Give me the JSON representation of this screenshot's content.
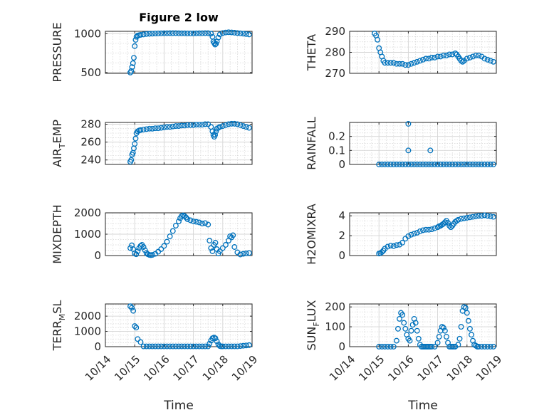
{
  "figure_title": "Figure 2 low",
  "x_label": "Time",
  "x_tick_labels": [
    "10/14",
    "10/15",
    "10/16",
    "10/17",
    "10/18",
    "10/19"
  ],
  "colors": {
    "marker": "#0072BD",
    "axis": "#262626",
    "grid": "#d6d6d6",
    "background": "#ffffff"
  },
  "chart_data": [
    {
      "type": "scatter",
      "title": "Figure 2 low",
      "ylabel": "PRESSURE",
      "ylabel_sub": null,
      "ylim": [
        490,
        1030
      ],
      "yticks": [
        500,
        1000
      ],
      "ytick_labels": [
        "500",
        "1000"
      ],
      "x": [
        0.85,
        0.88,
        0.91,
        0.94,
        0.97,
        1.0,
        1.03,
        1.06,
        1.1,
        1.15,
        1.2,
        1.3,
        1.4,
        1.5,
        1.6,
        1.7,
        1.8,
        1.9,
        2.0,
        2.1,
        2.2,
        2.3,
        2.4,
        2.5,
        2.6,
        2.7,
        2.8,
        2.9,
        3.0,
        3.1,
        3.2,
        3.3,
        3.4,
        3.5,
        3.6,
        3.65,
        3.68,
        3.71,
        3.74,
        3.77,
        3.8,
        3.85,
        3.9,
        4.0,
        4.1,
        4.2,
        4.3,
        4.4,
        4.5,
        4.6,
        4.7,
        4.8,
        4.9
      ],
      "y": [
        500,
        520,
        570,
        620,
        690,
        840,
        920,
        960,
        975,
        980,
        985,
        990,
        995,
        998,
        1000,
        1002,
        1003,
        1004,
        1005,
        1005,
        1006,
        1006,
        1006,
        1005,
        1004,
        1004,
        1003,
        1003,
        1003,
        1004,
        1005,
        1005,
        1006,
        1006,
        1000,
        960,
        900,
        880,
        860,
        870,
        900,
        950,
        990,
        1008,
        1015,
        1018,
        1016,
        1012,
        1008,
        1004,
        1000,
        995,
        990
      ]
    },
    {
      "type": "scatter",
      "ylabel": "THETA",
      "ylabel_sub": null,
      "ylim": [
        270,
        290
      ],
      "yticks": [
        270,
        280,
        290
      ],
      "ytick_labels": [
        "270",
        "280",
        "290"
      ],
      "x": [
        0.85,
        0.9,
        0.95,
        1.0,
        1.05,
        1.1,
        1.15,
        1.2,
        1.3,
        1.4,
        1.5,
        1.6,
        1.7,
        1.8,
        1.9,
        2.0,
        2.1,
        2.2,
        2.3,
        2.4,
        2.5,
        2.6,
        2.7,
        2.8,
        2.9,
        3.0,
        3.1,
        3.2,
        3.3,
        3.4,
        3.5,
        3.6,
        3.65,
        3.7,
        3.75,
        3.8,
        3.85,
        3.9,
        4.0,
        4.1,
        4.2,
        4.3,
        4.4,
        4.5,
        4.6,
        4.7,
        4.8,
        4.9
      ],
      "y": [
        289,
        288,
        286,
        282,
        280,
        278,
        276,
        275,
        275,
        275,
        275,
        274.5,
        274.5,
        274.5,
        274,
        274,
        274.5,
        275,
        275.5,
        276,
        276.5,
        277,
        277,
        277.5,
        277.5,
        278,
        278,
        278.5,
        278.5,
        279,
        279,
        279.5,
        279,
        278,
        277,
        276,
        275.5,
        276,
        277,
        277.5,
        278,
        278.5,
        278.5,
        278,
        277,
        276.5,
        276,
        275.5
      ]
    },
    {
      "type": "scatter",
      "ylabel": "AIR",
      "ylabel_sub": "T",
      "ylabel_suffix": "EMP",
      "ylim": [
        235,
        282
      ],
      "yticks": [
        240,
        260,
        280
      ],
      "ytick_labels": [
        "240",
        "260",
        "280"
      ],
      "x": [
        0.85,
        0.88,
        0.91,
        0.94,
        0.97,
        1.0,
        1.03,
        1.06,
        1.1,
        1.15,
        1.2,
        1.3,
        1.4,
        1.5,
        1.6,
        1.7,
        1.8,
        1.9,
        2.0,
        2.1,
        2.2,
        2.3,
        2.4,
        2.5,
        2.6,
        2.7,
        2.8,
        2.9,
        3.0,
        3.1,
        3.2,
        3.3,
        3.4,
        3.5,
        3.6,
        3.65,
        3.68,
        3.71,
        3.74,
        3.77,
        3.8,
        3.85,
        3.9,
        4.0,
        4.1,
        4.2,
        4.3,
        4.4,
        4.5,
        4.6,
        4.7,
        4.8,
        4.9
      ],
      "y": [
        238,
        240,
        246,
        248,
        253,
        258,
        264,
        270,
        272,
        273,
        273.5,
        274,
        274.5,
        275,
        275,
        275.5,
        275.5,
        276,
        276.5,
        277,
        277,
        277.5,
        278,
        278,
        278.5,
        278.5,
        279,
        279,
        279,
        279.5,
        279.5,
        279.5,
        280,
        280,
        277,
        272,
        268,
        266,
        268,
        272,
        275,
        276,
        277,
        278,
        279,
        280,
        280.5,
        280.5,
        280,
        279,
        278,
        277,
        276
      ]
    },
    {
      "type": "scatter",
      "ylabel": "RAINFALL",
      "ylabel_sub": null,
      "ylim": [
        0,
        0.3
      ],
      "yticks": [
        0,
        0.1,
        0.2
      ],
      "ytick_labels": [
        "0",
        "0.1",
        "0.2"
      ],
      "x": [
        1.0,
        1.1,
        1.2,
        1.3,
        1.4,
        1.5,
        1.6,
        1.7,
        1.8,
        1.9,
        2.0,
        2.1,
        2.2,
        2.3,
        2.4,
        2.5,
        2.6,
        2.7,
        2.8,
        2.9,
        3.0,
        3.1,
        3.2,
        3.3,
        3.4,
        3.5,
        3.6,
        3.7,
        3.8,
        3.9,
        4.0,
        4.1,
        4.2,
        4.3,
        4.4,
        4.5,
        4.6,
        4.7,
        4.8,
        4.9,
        2.0,
        2.0,
        2.75
      ],
      "y": [
        0,
        0,
        0,
        0,
        0,
        0,
        0,
        0,
        0,
        0,
        0,
        0,
        0,
        0,
        0,
        0,
        0,
        0,
        0,
        0,
        0,
        0,
        0,
        0,
        0,
        0,
        0,
        0,
        0,
        0,
        0,
        0,
        0,
        0,
        0,
        0,
        0,
        0,
        0,
        0,
        0.29,
        0.1,
        0.1
      ]
    },
    {
      "type": "scatter",
      "ylabel": "MIXDEPTH",
      "ylabel_sub": null,
      "ylim": [
        0,
        2000
      ],
      "yticks": [
        0,
        1000,
        2000
      ],
      "ytick_labels": [
        "0",
        "1000",
        "2000"
      ],
      "x": [
        0.85,
        0.9,
        0.95,
        1.0,
        1.05,
        1.1,
        1.15,
        1.2,
        1.25,
        1.3,
        1.35,
        1.4,
        1.45,
        1.5,
        1.55,
        1.6,
        1.7,
        1.8,
        1.9,
        2.0,
        2.1,
        2.2,
        2.3,
        2.4,
        2.5,
        2.55,
        2.6,
        2.65,
        2.7,
        2.75,
        2.8,
        2.9,
        3.0,
        3.1,
        3.2,
        3.3,
        3.4,
        3.5,
        3.55,
        3.6,
        3.65,
        3.7,
        3.75,
        3.8,
        3.85,
        3.9,
        4.0,
        4.1,
        4.2,
        4.25,
        4.3,
        4.35,
        4.4,
        4.5,
        4.6,
        4.7,
        4.8,
        4.9
      ],
      "y": [
        350,
        480,
        300,
        100,
        60,
        200,
        350,
        450,
        500,
        400,
        250,
        120,
        60,
        30,
        20,
        30,
        80,
        180,
        300,
        450,
        650,
        900,
        1150,
        1400,
        1600,
        1750,
        1850,
        1880,
        1850,
        1780,
        1700,
        1650,
        1600,
        1580,
        1550,
        1500,
        1520,
        1450,
        700,
        350,
        200,
        500,
        600,
        300,
        100,
        200,
        350,
        500,
        700,
        900,
        850,
        950,
        400,
        150,
        50,
        80,
        100,
        120
      ]
    },
    {
      "type": "scatter",
      "ylabel": "H2OMIXRA",
      "ylabel_sub": null,
      "ylim": [
        0,
        4.3
      ],
      "yticks": [
        0,
        2,
        4
      ],
      "ytick_labels": [
        "0",
        "2",
        "4"
      ],
      "x": [
        1.0,
        1.05,
        1.1,
        1.15,
        1.2,
        1.3,
        1.4,
        1.5,
        1.6,
        1.7,
        1.8,
        1.9,
        2.0,
        2.1,
        2.2,
        2.3,
        2.4,
        2.5,
        2.6,
        2.7,
        2.8,
        2.9,
        3.0,
        3.05,
        3.1,
        3.15,
        3.2,
        3.25,
        3.3,
        3.35,
        3.4,
        3.45,
        3.5,
        3.55,
        3.6,
        3.65,
        3.7,
        3.8,
        3.9,
        4.0,
        4.1,
        4.2,
        4.3,
        4.4,
        4.5,
        4.6,
        4.7,
        4.8,
        4.9
      ],
      "y": [
        0.2,
        0.25,
        0.35,
        0.5,
        0.7,
        0.9,
        1.0,
        0.95,
        1.05,
        1.1,
        1.3,
        1.7,
        1.95,
        2.1,
        2.2,
        2.3,
        2.45,
        2.55,
        2.6,
        2.6,
        2.65,
        2.75,
        2.85,
        2.95,
        3.0,
        3.1,
        3.2,
        3.35,
        3.5,
        3.3,
        3.0,
        2.85,
        3.0,
        3.2,
        3.4,
        3.5,
        3.6,
        3.7,
        3.75,
        3.8,
        3.85,
        3.9,
        3.95,
        4.0,
        4.0,
        4.05,
        4.0,
        3.95,
        3.9
      ]
    },
    {
      "type": "scatter",
      "ylabel": "TERR",
      "ylabel_sub": "M",
      "ylabel_suffix": "SL",
      "ylim": [
        0,
        2800
      ],
      "yticks": [
        0,
        1000,
        2000
      ],
      "ytick_labels": [
        "0",
        "1000",
        "2000"
      ],
      "x": [
        0.85,
        0.9,
        0.95,
        1.0,
        1.05,
        1.1,
        1.2,
        1.3,
        1.4,
        1.5,
        1.6,
        1.7,
        1.8,
        1.9,
        2.0,
        2.1,
        2.2,
        2.3,
        2.4,
        2.5,
        2.6,
        2.7,
        2.8,
        2.9,
        3.0,
        3.1,
        3.2,
        3.3,
        3.4,
        3.5,
        3.55,
        3.6,
        3.65,
        3.7,
        3.75,
        3.8,
        3.85,
        3.9,
        3.95,
        4.0,
        4.1,
        4.2,
        4.3,
        4.4,
        4.5,
        4.6,
        4.7,
        4.8,
        4.9
      ],
      "y": [
        2650,
        2550,
        2350,
        1350,
        1250,
        500,
        300,
        20,
        20,
        20,
        20,
        20,
        20,
        20,
        20,
        20,
        20,
        20,
        20,
        20,
        20,
        20,
        20,
        20,
        20,
        20,
        20,
        20,
        20,
        20,
        200,
        400,
        550,
        600,
        550,
        350,
        150,
        40,
        20,
        20,
        20,
        20,
        20,
        20,
        20,
        40,
        60,
        80,
        100
      ]
    },
    {
      "type": "scatter",
      "ylabel": "SUN",
      "ylabel_sub": "F",
      "ylabel_suffix": "LUX",
      "ylim": [
        0,
        215
      ],
      "yticks": [
        0,
        100,
        200
      ],
      "ytick_labels": [
        "0",
        "100",
        "200"
      ],
      "x": [
        1.0,
        1.1,
        1.2,
        1.3,
        1.4,
        1.5,
        1.6,
        1.65,
        1.7,
        1.75,
        1.8,
        1.85,
        1.9,
        1.95,
        2.0,
        2.05,
        2.1,
        2.15,
        2.2,
        2.25,
        2.3,
        2.35,
        2.4,
        2.45,
        2.5,
        2.55,
        2.6,
        2.65,
        2.7,
        2.75,
        2.8,
        2.9,
        3.0,
        3.05,
        3.1,
        3.15,
        3.2,
        3.25,
        3.3,
        3.35,
        3.4,
        3.45,
        3.5,
        3.55,
        3.6,
        3.7,
        3.75,
        3.8,
        3.85,
        3.9,
        3.95,
        4.0,
        4.05,
        4.1,
        4.15,
        4.2,
        4.25,
        4.3,
        4.35,
        4.4,
        4.5,
        4.6,
        4.7,
        4.8,
        4.9
      ],
      "y": [
        0,
        0,
        0,
        0,
        0,
        0,
        30,
        90,
        140,
        170,
        160,
        120,
        90,
        60,
        40,
        30,
        80,
        110,
        140,
        120,
        80,
        40,
        10,
        0,
        0,
        0,
        0,
        0,
        0,
        0,
        0,
        0,
        20,
        50,
        80,
        100,
        95,
        80,
        50,
        20,
        0,
        0,
        0,
        0,
        0,
        10,
        40,
        100,
        180,
        200,
        195,
        170,
        130,
        90,
        60,
        30,
        10,
        5,
        0,
        0,
        0,
        0,
        0,
        0,
        0
      ]
    }
  ]
}
